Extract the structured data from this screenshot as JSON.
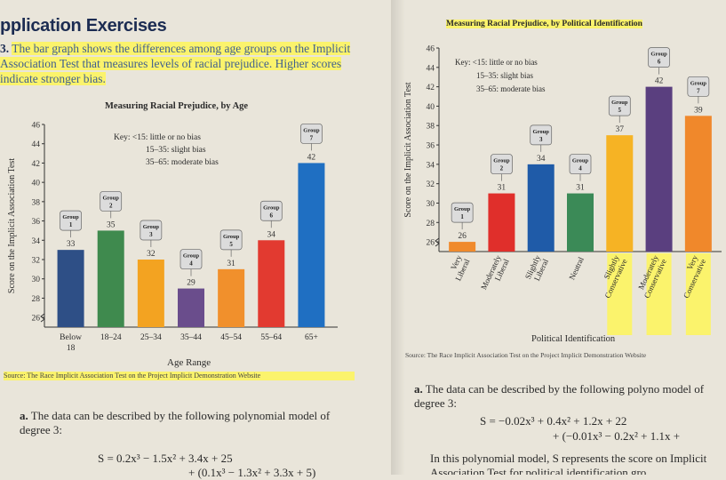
{
  "heading": "pplication Exercises",
  "problem": {
    "number": "3.",
    "text": "The bar graph shows the differences among age groups on the Implicit Association Test that measures levels of racial prejudice. Higher scores indicate stronger bias."
  },
  "chart_data": [
    {
      "type": "bar",
      "title": "Measuring Racial Prejudice, by Age",
      "xlabel": "Age Range",
      "ylabel": "Score on the Implicit Association Test",
      "ylim": [
        25,
        46
      ],
      "yticks": [
        26,
        28,
        30,
        32,
        34,
        36,
        38,
        40,
        42,
        44,
        46
      ],
      "categories": [
        "Below 18",
        "18–24",
        "25–34",
        "35–44",
        "45–54",
        "55–64",
        "65+"
      ],
      "values": [
        33,
        35,
        32,
        29,
        31,
        34,
        42
      ],
      "groups": [
        "Group 1",
        "Group 2",
        "Group 3",
        "Group 4",
        "Group 5",
        "Group 6",
        "Group 7"
      ],
      "colors": [
        "#2e4f86",
        "#3f8a4e",
        "#f3a321",
        "#6a4d8c",
        "#f1902c",
        "#e23a30",
        "#1f6fc2"
      ],
      "key": [
        "Key:  <15: little or no bias",
        "15–35: slight bias",
        "35–65: moderate bias"
      ],
      "source": "Source: The Race Implicit Association Test on the Project Implicit Demonstration Website",
      "grid": false
    },
    {
      "type": "bar",
      "title": "Measuring Racial Prejudice, by Political Identification",
      "xlabel": "Political Identification",
      "ylabel": "Score on the Implicit Association Test",
      "ylim": [
        25,
        46
      ],
      "yticks": [
        26,
        28,
        30,
        32,
        34,
        36,
        38,
        40,
        42,
        44,
        46
      ],
      "categories": [
        "Very Liberal",
        "Moderately Liberal",
        "Slightly Liberal",
        "Neutral",
        "Slightly Conservative",
        "Moderately Conservative",
        "Very Conservative"
      ],
      "values": [
        26,
        31,
        34,
        31,
        37,
        42,
        39
      ],
      "groups": [
        "Group 1",
        "Group 2",
        "Group 3",
        "Group 4",
        "Group 5",
        "Group 6",
        "Group 7"
      ],
      "colors": [
        "#f08a2c",
        "#e02f2b",
        "#1f5ba8",
        "#3b8a57",
        "#f6b324",
        "#5a3f7f",
        "#f0882b"
      ],
      "key": [
        "Key:  <15: little or no bias",
        "15–35: slight bias",
        "35–65: moderate bias"
      ],
      "source": "Source: The Race Implicit Association Test on the Project Implicit Demonstration Website",
      "grid": false
    }
  ],
  "left_part_a": {
    "label": "a.",
    "text": "The data can be described by the following polynomial model of degree 3:",
    "eq1": "S = 0.2x³ − 1.5x² + 3.4x + 25",
    "eq2": "+ (0.1x³ − 1.3x² + 3.3x + 5)"
  },
  "right_part_a": {
    "label": "a.",
    "text": "The data can be described by the following polyno model of degree 3:",
    "eq1": "S = −0.02x³ + 0.4x² + 1.2x + 22",
    "eq2": "+ (−0.01x³ − 0.2x² + 1.1x +",
    "text2": "In this polynomial model, S represents the score on Implicit Association Test for political identification gro"
  }
}
